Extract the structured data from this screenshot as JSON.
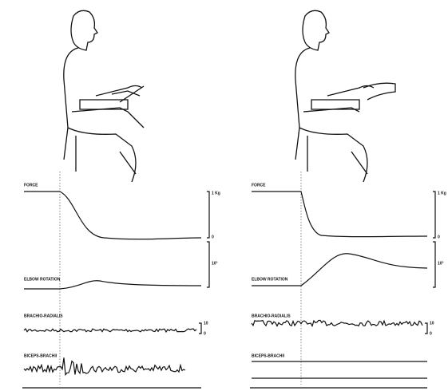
{
  "figure": {
    "panels": [
      {
        "traces": [
          {
            "label": "FORCE",
            "scale_top": "1 Kg",
            "scale_bottom": "0"
          },
          {
            "label": "ELBOW ROTATION",
            "scale_top": "10°"
          },
          {
            "label": "BRACHIO-RADIALIS",
            "scale_top": "10",
            "scale_bottom": "0"
          },
          {
            "label": "BICEPS-BRACHII"
          }
        ]
      },
      {
        "traces": [
          {
            "label": "FORCE",
            "scale_top": "1 Kg",
            "scale_bottom": "0"
          },
          {
            "label": "ELBOW ROTATION",
            "scale_top": "10°"
          },
          {
            "label": "BRACHIO-RADIALIS",
            "scale_top": "10",
            "scale_bottom": "0"
          },
          {
            "label": "BICEPS-BRACHII"
          }
        ]
      }
    ]
  }
}
